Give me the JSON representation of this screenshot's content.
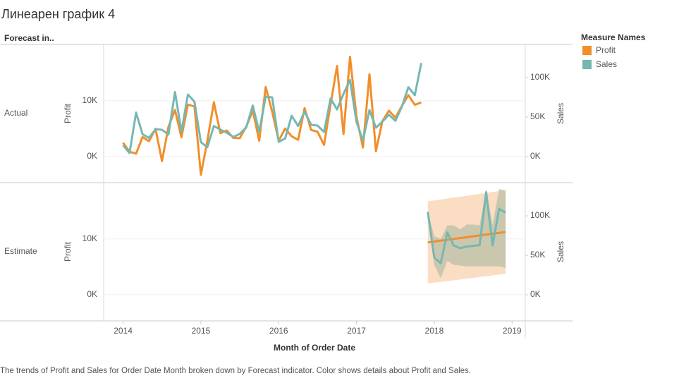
{
  "chart_data": {
    "type": "line",
    "title": "Линеарен график 4",
    "column_header": "Forecast in..",
    "xlabel": "Month of Order Date",
    "ylabel": "Profit",
    "y2label": "Sales",
    "legend_title": "Measure Names",
    "caption": "The trends of Profit and Sales for Order Date Month broken down by Forecast indicator.  Color shows details about Profit and Sales.",
    "xlim": [
      2013.75,
      2019.17
    ],
    "xticks": [
      2014,
      2015,
      2016,
      2017,
      2018,
      2019
    ],
    "ylim": [
      -4700,
      20100
    ],
    "yticks": [
      {
        "value": 0,
        "label": "0K"
      },
      {
        "value": 10000,
        "label": "10K"
      }
    ],
    "y2lim": [
      -33000,
      142000
    ],
    "y2ticks": [
      {
        "value": 0,
        "label": "0K"
      },
      {
        "value": 50000,
        "label": "50K"
      },
      {
        "value": 100000,
        "label": "100K"
      }
    ],
    "grid": true,
    "panes": [
      {
        "label": "Actual",
        "x": [
          2014,
          2014.083,
          2014.167,
          2014.25,
          2014.333,
          2014.417,
          2014.5,
          2014.583,
          2014.667,
          2014.75,
          2014.833,
          2014.917,
          2015,
          2015.083,
          2015.167,
          2015.25,
          2015.333,
          2015.417,
          2015.5,
          2015.583,
          2015.667,
          2015.75,
          2015.833,
          2015.917,
          2016,
          2016.083,
          2016.167,
          2016.25,
          2016.333,
          2016.417,
          2016.5,
          2016.583,
          2016.667,
          2016.75,
          2016.833,
          2016.917,
          2017,
          2017.083,
          2017.167,
          2017.25,
          2017.333,
          2017.417,
          2017.5,
          2017.583,
          2017.667,
          2017.75,
          2017.833
        ],
        "series": [
          {
            "name": "Profit",
            "color": "#f28e2b",
            "values": [
              2450,
              862,
              498,
              3489,
              2739,
              4977,
              -841,
              5318,
              8328,
              3448,
              9292,
              8983,
              -3281,
              2814,
              9732,
              4187,
              4668,
              3335,
              3288,
              5355,
              8210,
              2817,
              12474,
              8017,
              2824,
              5005,
              3612,
              2978,
              8662,
              4751,
              4433,
              2062,
              9329,
              16243,
              4011,
              17885,
              7140,
              1613,
              14751,
              933,
              6342,
              8223,
              6952,
              9041,
              10991,
              9275,
              9690
            ]
          },
          {
            "name": "Sales",
            "color": "#76b7b2",
            "axis": "y2",
            "values": [
              14237,
              4520,
              55691,
              28295,
              23648,
              34595,
              33946,
              27909,
              81777,
              31453,
              78629,
              69546,
              18174,
              11951,
              38726,
              34195,
              30132,
              24797,
              28765,
              36898,
              64596,
              31405,
              75973,
              74920,
              18542,
              22979,
              51716,
              38750,
              56988,
              40345,
              39262,
              31115,
              73410,
              59688,
              79412,
              96999,
              43971,
              20301,
              58872,
              36522,
              44261,
              52982,
              45264,
              63121,
              87867,
              77777,
              118448
            ]
          }
        ]
      },
      {
        "label": "Estimate",
        "x": [
          2017.917,
          2018,
          2018.083,
          2018.167,
          2018.25,
          2018.333,
          2018.417,
          2018.5,
          2018.583,
          2018.667,
          2018.75,
          2018.833,
          2018.917
        ],
        "series": [
          {
            "name": "Profit",
            "color": "#f28e2b",
            "band_color": "#f9d2b0",
            "values": [
              9380,
              9540,
              9690,
              9850,
              10000,
              10160,
              10310,
              10470,
              10630,
              10780,
              10940,
              11090,
              11250
            ],
            "upper": [
              16750,
              16920,
              17080,
              17250,
              17420,
              17580,
              17750,
              17920,
              18080,
              18250,
              18420,
              18580,
              18750
            ],
            "lower": [
              2000,
              2150,
              2290,
              2440,
              2580,
              2730,
              2880,
              3020,
              3170,
              3310,
              3460,
              3600,
              3750
            ]
          },
          {
            "name": "Sales",
            "color": "#76b7b2",
            "axis": "y2",
            "band_color": "#b9bfa8",
            "values": [
              105000,
              47000,
              40000,
              79000,
              62500,
              59000,
              61000,
              62000,
              63000,
              130000,
              62500,
              109000,
              104000
            ],
            "upper": [
              105000,
              74000,
              71000,
              88000,
              88000,
              83000,
              89000,
              89000,
              88000,
              134000,
              88000,
              134000,
              132000
            ],
            "lower": [
              105000,
              38000,
              21000,
              43000,
              38000,
              37000,
              36000,
              36000,
              36000,
              36000,
              36000,
              36000,
              34000
            ]
          }
        ]
      }
    ]
  }
}
